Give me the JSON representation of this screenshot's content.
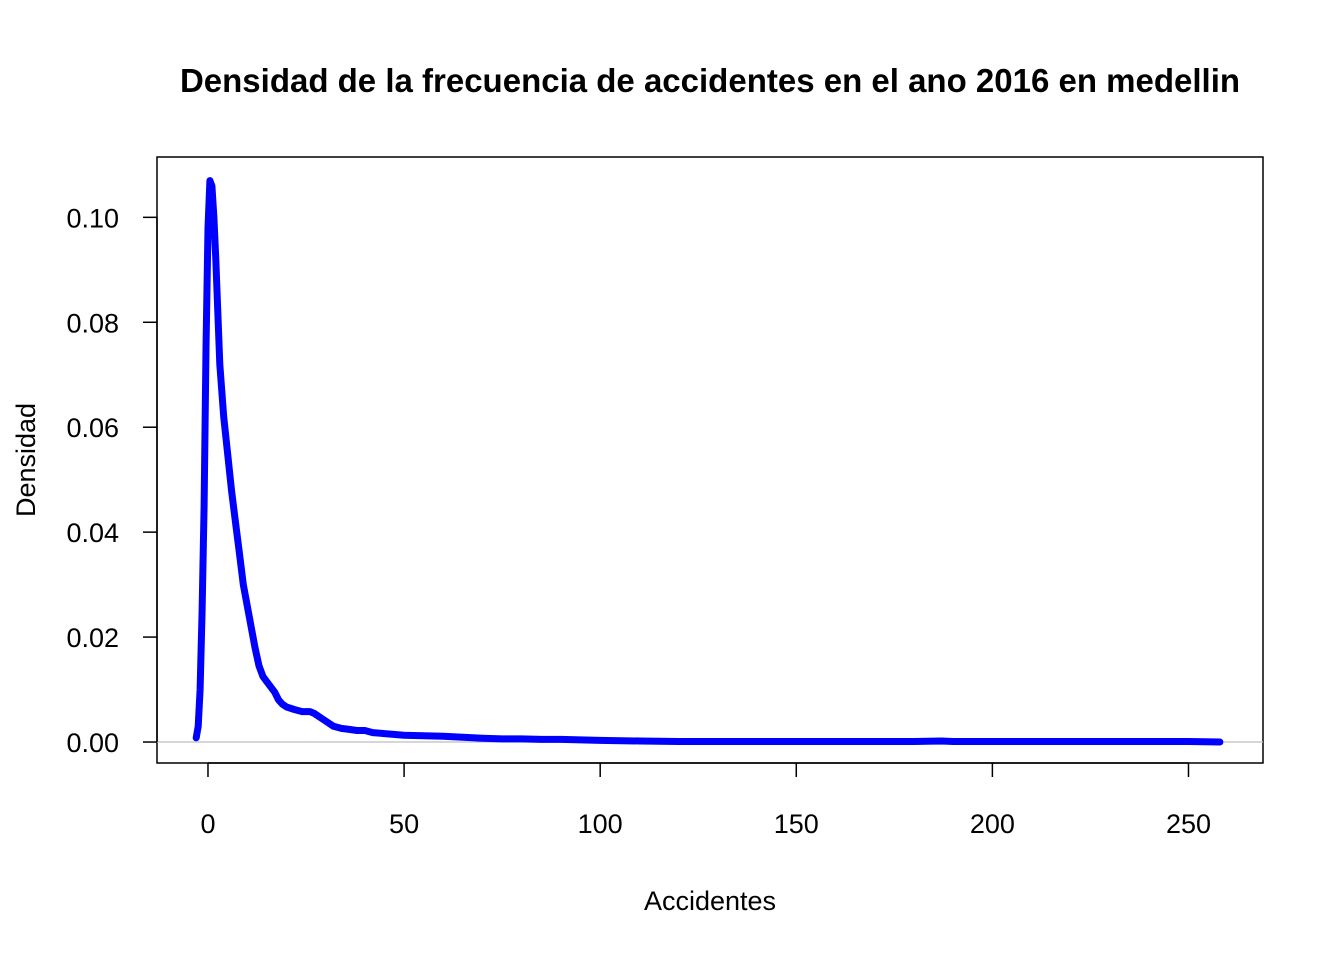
{
  "chart_data": {
    "type": "line",
    "title": "Densidad de la frecuencia de accidentes en el ano 2016 en medellin",
    "xlabel": "Accidentes",
    "ylabel": "Densidad",
    "xlim": [
      -13,
      269
    ],
    "ylim": [
      -0.004,
      0.1115
    ],
    "x_ticks": [
      0,
      50,
      100,
      150,
      200,
      250
    ],
    "x_tick_labels": [
      "0",
      "50",
      "100",
      "150",
      "200",
      "250"
    ],
    "y_ticks": [
      0.0,
      0.02,
      0.04,
      0.06,
      0.08,
      0.1
    ],
    "y_tick_labels": [
      "0.00",
      "0.02",
      "0.04",
      "0.06",
      "0.08",
      "0.10"
    ],
    "grid": false,
    "baseline": 0,
    "colors": {
      "series": "#0000ff",
      "baseline": "#bebebe",
      "frame": "#000000"
    },
    "series": [
      {
        "x": [
          -3,
          -2.5,
          -2,
          -1.5,
          -1,
          -0.5,
          0,
          0.5,
          1,
          1.5,
          2,
          2.5,
          3,
          4,
          5,
          6,
          7,
          8,
          9,
          10,
          11,
          12,
          13,
          14,
          15,
          17,
          18,
          19,
          20,
          22,
          24,
          26,
          27,
          28,
          30,
          32,
          34,
          36,
          38,
          40,
          42,
          45,
          50,
          55,
          60,
          65,
          70,
          75,
          80,
          85,
          90,
          95,
          100,
          110,
          120,
          130,
          140,
          150,
          160,
          170,
          180,
          187,
          190,
          200,
          210,
          220,
          230,
          240,
          250,
          258
        ],
        "y": [
          0.0008,
          0.003,
          0.01,
          0.025,
          0.045,
          0.075,
          0.098,
          0.107,
          0.106,
          0.1,
          0.092,
          0.082,
          0.072,
          0.062,
          0.055,
          0.048,
          0.042,
          0.036,
          0.03,
          0.026,
          0.022,
          0.018,
          0.0145,
          0.0125,
          0.0115,
          0.0095,
          0.008,
          0.0072,
          0.0067,
          0.0062,
          0.0058,
          0.0058,
          0.0055,
          0.005,
          0.004,
          0.003,
          0.0026,
          0.0024,
          0.0022,
          0.0022,
          0.0018,
          0.0016,
          0.0013,
          0.0012,
          0.0011,
          0.0009,
          0.0007,
          0.0006,
          0.0006,
          0.0005,
          0.0005,
          0.0004,
          0.0003,
          0.0002,
          0.0001,
          0.0001,
          0.0001,
          0.0001,
          0.0001,
          0.0001,
          0.0001,
          0.0002,
          0.0001,
          0.0001,
          0.0001,
          0.0001,
          0.0001,
          0.0001,
          0.0001,
          0.0
        ]
      }
    ]
  }
}
